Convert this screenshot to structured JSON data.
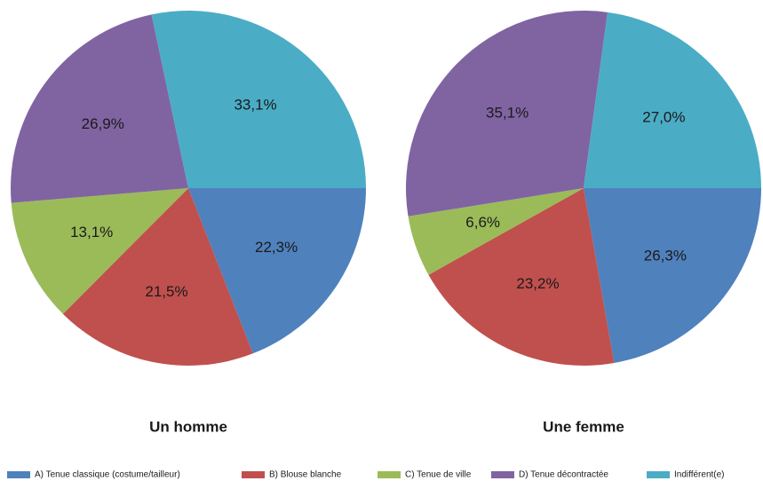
{
  "chart_data": [
    {
      "type": "pie",
      "title": "Un homme",
      "categories": [
        "A) Tenue classique (costume/tailleur)",
        "B) Blouse blanche",
        "C) Tenue de ville",
        "D) Tenue décontractée",
        "Indifférent(e)"
      ],
      "values": [
        22.3,
        21.5,
        13.1,
        26.9,
        33.1
      ],
      "value_labels": [
        "22,3%",
        "21,5%",
        "13,1%",
        "26,9%",
        "33,1%"
      ],
      "colors": [
        "#4f81bd",
        "#c0504d",
        "#9bbb59",
        "#8064a2",
        "#4bacc6"
      ]
    },
    {
      "type": "pie",
      "title": "Une femme",
      "categories": [
        "A) Tenue classique (costume/tailleur)",
        "B) Blouse blanche",
        "C) Tenue de ville",
        "D) Tenue décontractée",
        "Indifférent(e)"
      ],
      "values": [
        26.3,
        23.2,
        6.6,
        35.1,
        27.0
      ],
      "value_labels": [
        "26,3%",
        "23,2%",
        "6,6%",
        "35,1%",
        "27,0%"
      ],
      "colors": [
        "#4f81bd",
        "#c0504d",
        "#9bbb59",
        "#8064a2",
        "#4bacc6"
      ]
    }
  ]
}
